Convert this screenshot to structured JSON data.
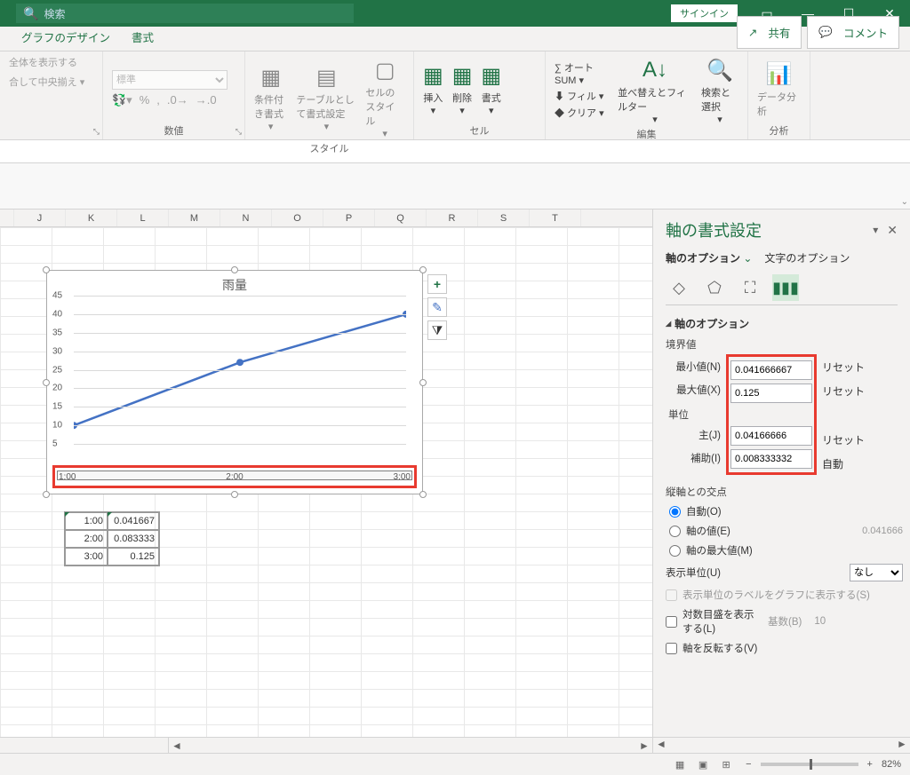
{
  "titlebar": {
    "search_placeholder": "検索",
    "signin": "サインイン"
  },
  "tabs": {
    "design": "グラフのデザイン",
    "format": "書式",
    "share": "共有",
    "comment": "コメント"
  },
  "ribbon": {
    "alignment": {
      "wrap": "全体を表示する",
      "merge": "合して中央揃え"
    },
    "number": {
      "label": "数値",
      "format": "標準",
      "symbols": [
        "%",
        ","
      ]
    },
    "style": {
      "label": "スタイル",
      "cond": "条件付き書式",
      "table": "テーブルとして書式設定",
      "cell": "セルのスタイル"
    },
    "cells": {
      "label": "セル",
      "insert": "挿入",
      "delete": "削除",
      "format": "書式"
    },
    "editing": {
      "label": "編集",
      "autosum": "オート SUM",
      "fill": "フィル",
      "clear": "クリア",
      "sort": "並べ替えとフィルター",
      "find": "検索と選択"
    },
    "analysis": {
      "label": "分析",
      "data": "データ分析"
    }
  },
  "columns": [
    "J",
    "K",
    "L",
    "M",
    "N",
    "O",
    "P",
    "Q",
    "R",
    "S",
    "T"
  ],
  "chart": {
    "title": "雨量",
    "y_ticks": [
      5,
      10,
      15,
      20,
      25,
      30,
      35,
      40,
      45
    ],
    "x_labels": [
      "1:00",
      "2:00",
      "3:00"
    ],
    "points": [
      [
        0,
        10
      ],
      [
        50,
        27
      ],
      [
        100,
        40
      ]
    ],
    "y_max": 45,
    "line_color": "#4472c4",
    "grid_color": "#d9d9d9",
    "highlight_color": "#e83a2f",
    "buttons": [
      "+",
      "brush",
      "filter"
    ]
  },
  "data_rows": [
    {
      "t": "1:00",
      "v": "0.041667"
    },
    {
      "t": "2:00",
      "v": "0.083333"
    },
    {
      "t": "3:00",
      "v": "0.125"
    }
  ],
  "pane": {
    "title": "軸の書式設定",
    "tab_options": "軸のオプション",
    "tab_text": "文字のオプション",
    "section_axis_options": "軸のオプション",
    "bounds_label": "境界値",
    "min_label": "最小値(N)",
    "max_label": "最大値(X)",
    "min_value": "0.041666667",
    "max_value": "0.125",
    "units_label": "単位",
    "major_label": "主(J)",
    "minor_label": "補助(I)",
    "major_value": "0.04166666",
    "minor_value": "0.008333332",
    "reset": "リセット",
    "auto": "自動",
    "cross_label": "縦軸との交点",
    "cross_auto": "自動(O)",
    "cross_value": "軸の値(E)",
    "cross_value_num": "0.041666",
    "cross_max": "軸の最大値(M)",
    "disp_units_label": "表示単位(U)",
    "disp_units_value": "なし",
    "disp_units_check": "表示単位のラベルをグラフに表示する(S)",
    "log_label": "対数目盛を表示する(L)",
    "base_label": "基数(B)",
    "base_value": "10",
    "reverse_label": "軸を反転する(V)"
  },
  "status": {
    "zoom": "82%"
  }
}
